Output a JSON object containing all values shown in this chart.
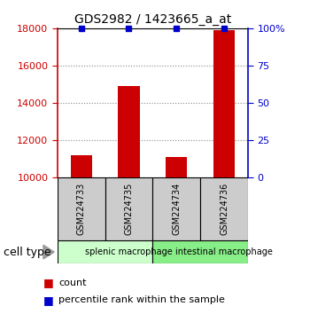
{
  "title": "GDS2982 / 1423665_a_at",
  "samples": [
    "GSM224733",
    "GSM224735",
    "GSM224734",
    "GSM224736"
  ],
  "counts": [
    11200,
    14900,
    11100,
    17900
  ],
  "groups": [
    {
      "label": "splenic macrophage",
      "color": "#ccffcc",
      "start": 0,
      "end": 2
    },
    {
      "label": "intestinal macrophage",
      "color": "#88ee88",
      "start": 2,
      "end": 4
    }
  ],
  "ylim": [
    10000,
    18000
  ],
  "yticks_left": [
    10000,
    12000,
    14000,
    16000,
    18000
  ],
  "yticks_right_pct": [
    0,
    25,
    50,
    75,
    100
  ],
  "left_tick_color": "#cc0000",
  "right_tick_color": "#0000cc",
  "bar_color": "#cc0000",
  "dot_color": "#0000cc",
  "grid_color": "#888888",
  "background_color": "#ffffff",
  "sample_box_color": "#cccccc",
  "cell_type_label": "cell type",
  "legend_count_label": "count",
  "legend_pct_label": "percentile rank within the sample",
  "bar_width": 0.45,
  "dot_size": 5,
  "title_fontsize": 10,
  "tick_labelsize": 8,
  "sample_fontsize": 7,
  "group_fontsize": 7,
  "legend_fontsize": 8,
  "cell_type_fontsize": 9
}
